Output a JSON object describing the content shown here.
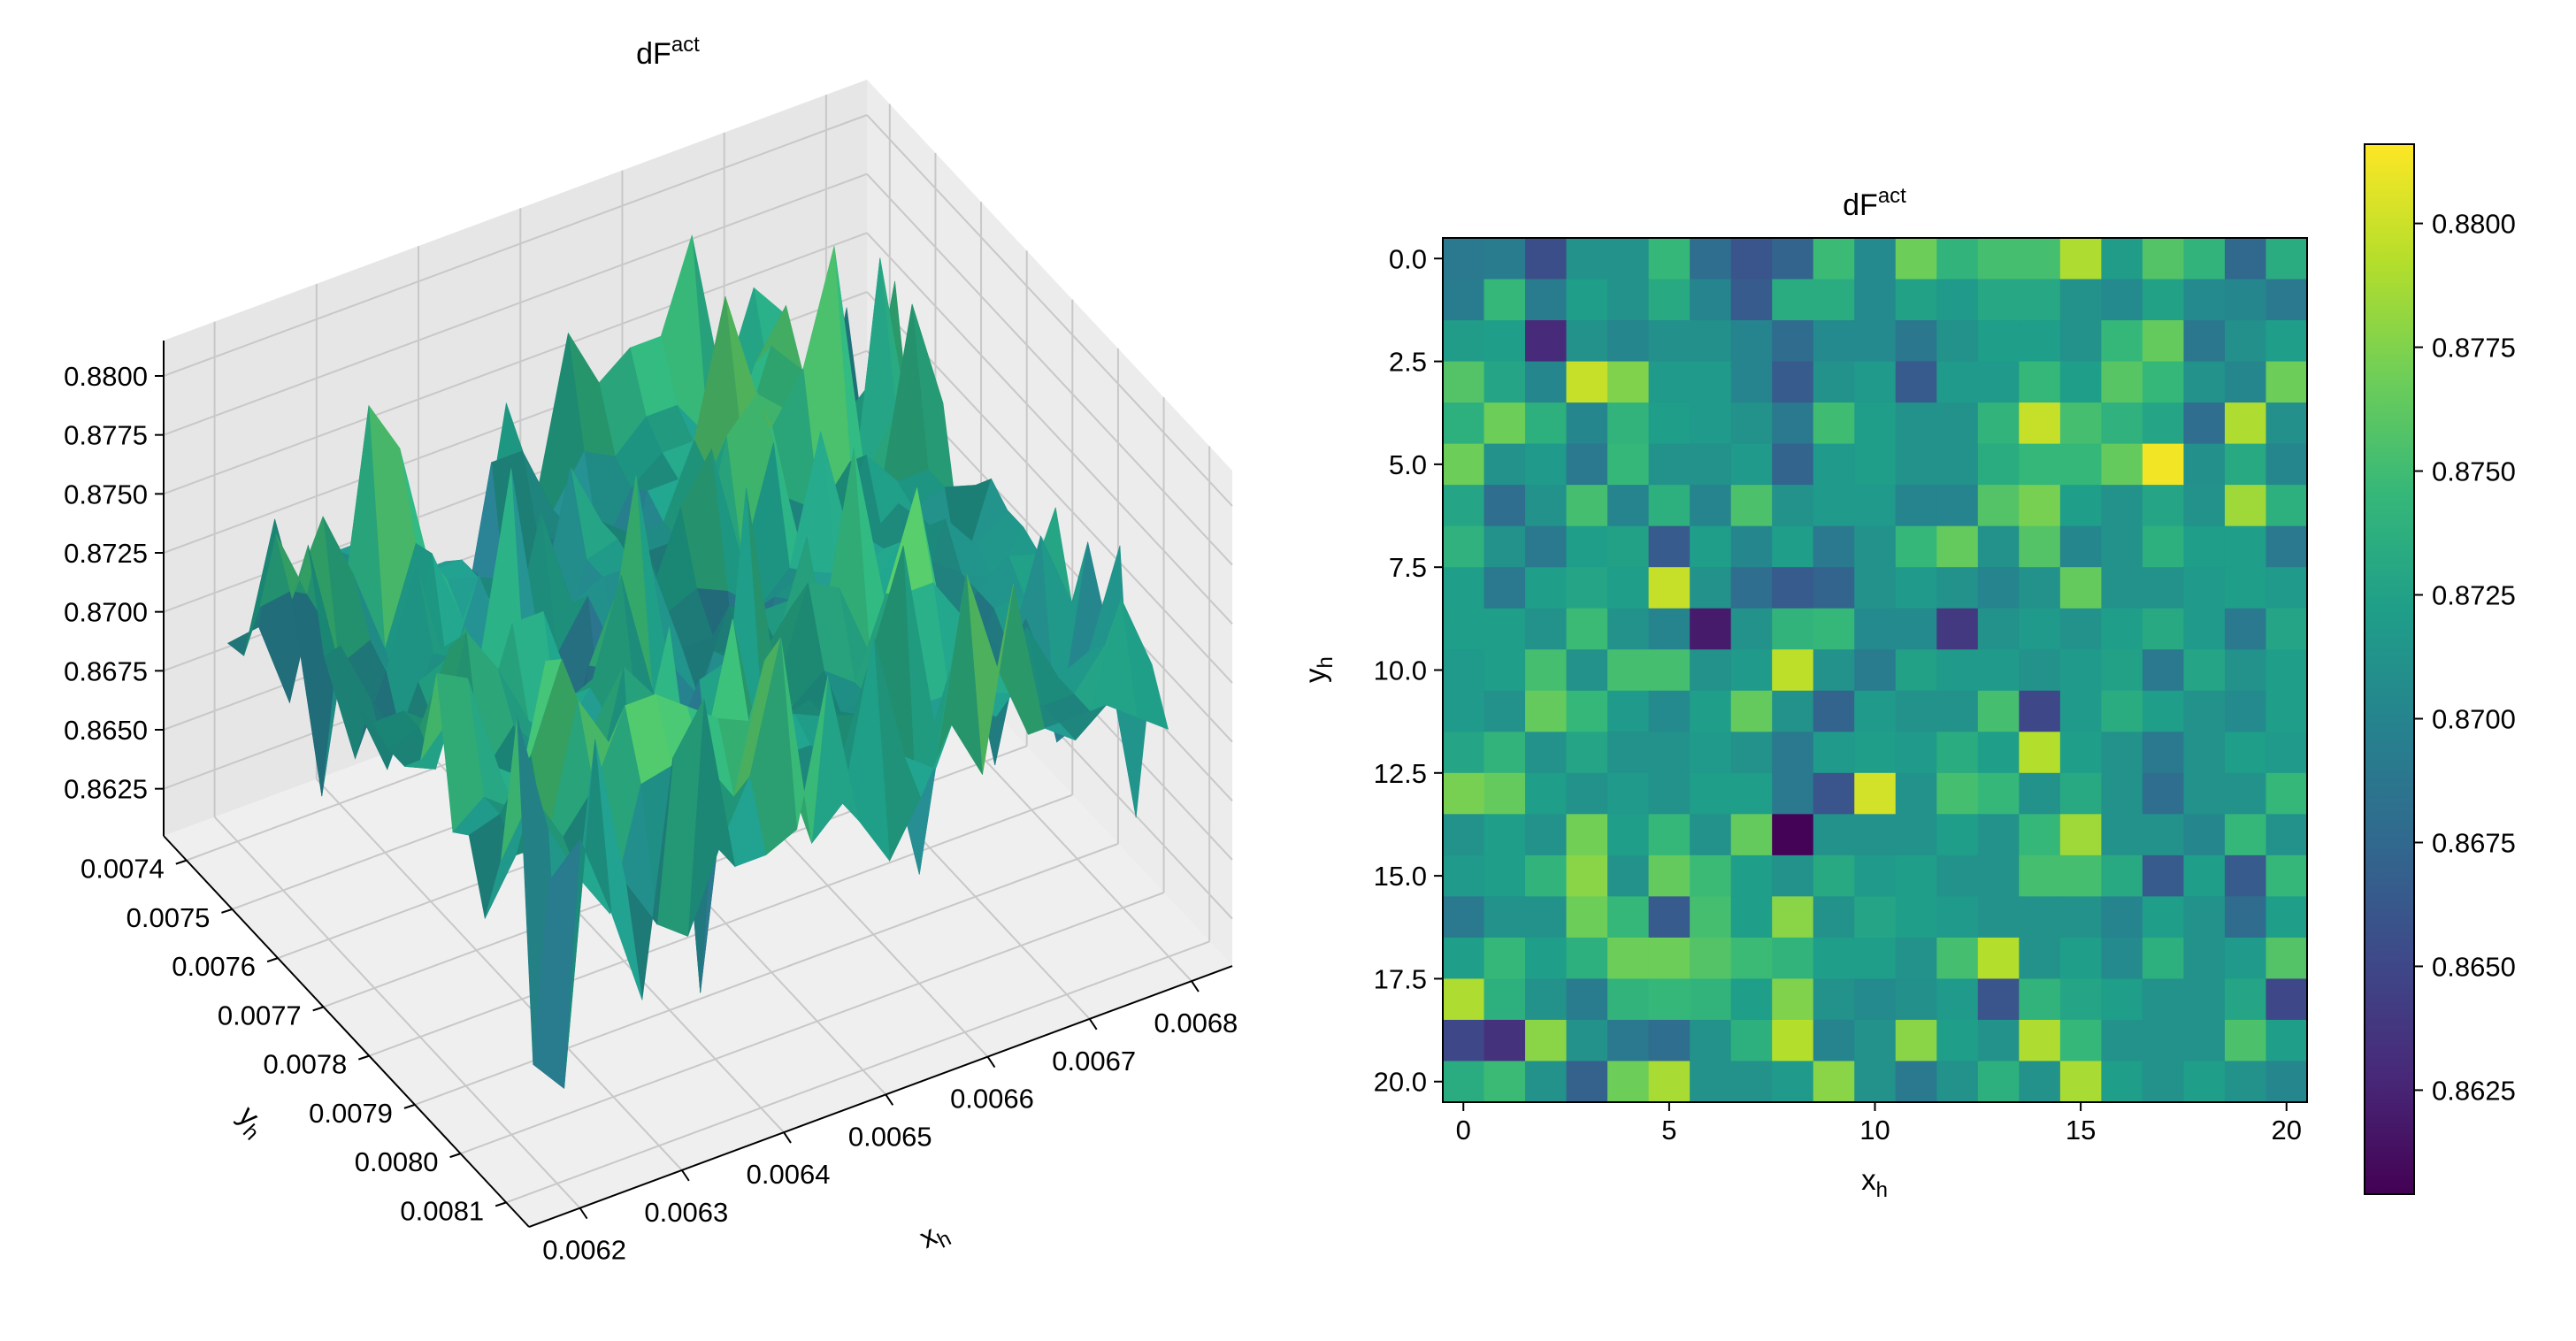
{
  "colormap": "viridis",
  "colors": {
    "viridis": [
      "#440154",
      "#482878",
      "#3e4989",
      "#31688e",
      "#26828e",
      "#1f9e89",
      "#35b779",
      "#6ece58",
      "#b5de2b",
      "#fde725"
    ],
    "pane": "#ebebeb",
    "grid": "#c8c8c8"
  },
  "chart_data": [
    {
      "type": "surface3d",
      "title": "dF",
      "title_superscript": "act",
      "xlabel": "x",
      "xlabel_subscript": "h",
      "ylabel": "y",
      "ylabel_subscript": "h",
      "x_ticks": [
        "0.0062",
        "0.0063",
        "0.0064",
        "0.0065",
        "0.0066",
        "0.0067",
        "0.0068"
      ],
      "y_ticks": [
        "0.0074",
        "0.0075",
        "0.0076",
        "0.0077",
        "0.0078",
        "0.0079",
        "0.0080",
        "0.0081"
      ],
      "z_ticks": [
        "0.8625",
        "0.8650",
        "0.8675",
        "0.8700",
        "0.8725",
        "0.8750",
        "0.8775",
        "0.8800"
      ],
      "xlim": [
        0.00615,
        0.00684
      ],
      "ylim": [
        0.00735,
        0.00815
      ],
      "zlim": [
        0.8605,
        0.8815
      ],
      "grid": true
    },
    {
      "type": "heatmap",
      "title": "dF",
      "title_superscript": "act",
      "xlabel": "x",
      "xlabel_subscript": "h",
      "ylabel": "y",
      "ylabel_subscript": "h",
      "x_ticks": [
        "0",
        "5",
        "10",
        "15",
        "20"
      ],
      "y_ticks": [
        "0.0",
        "2.5",
        "5.0",
        "7.5",
        "10.0",
        "12.5",
        "15.0",
        "17.5",
        "20.0"
      ],
      "colorbar_ticks": [
        "0.8625",
        "0.8650",
        "0.8675",
        "0.8700",
        "0.8725",
        "0.8750",
        "0.8775",
        "0.8800"
      ],
      "vmin": 0.8604,
      "vmax": 0.8816,
      "rows": 21,
      "cols": 21,
      "values": [
        [
          0.869,
          0.8692,
          0.8655,
          0.8712,
          0.8712,
          0.8745,
          0.868,
          0.866,
          0.8672,
          0.8748,
          0.8705,
          0.8768,
          0.8742,
          0.8752,
          0.8752,
          0.879,
          0.872,
          0.8758,
          0.8742,
          0.8675,
          0.8735
        ],
        [
          0.8692,
          0.8745,
          0.8692,
          0.8722,
          0.8712,
          0.8732,
          0.87,
          0.8665,
          0.8735,
          0.8735,
          0.8705,
          0.8725,
          0.8718,
          0.873,
          0.873,
          0.8712,
          0.8705,
          0.8725,
          0.8705,
          0.8702,
          0.869
        ],
        [
          0.872,
          0.8722,
          0.863,
          0.8712,
          0.8702,
          0.871,
          0.871,
          0.87,
          0.8678,
          0.8705,
          0.8705,
          0.8688,
          0.8712,
          0.8722,
          0.8722,
          0.8712,
          0.8745,
          0.8765,
          0.8688,
          0.871,
          0.8722
        ],
        [
          0.8758,
          0.8728,
          0.8702,
          0.8798,
          0.8775,
          0.8718,
          0.8718,
          0.87,
          0.8665,
          0.8712,
          0.8718,
          0.8665,
          0.8718,
          0.8718,
          0.8745,
          0.8722,
          0.876,
          0.8745,
          0.8712,
          0.8702,
          0.8768
        ],
        [
          0.8738,
          0.8768,
          0.8738,
          0.8702,
          0.8742,
          0.8722,
          0.8718,
          0.8712,
          0.869,
          0.875,
          0.8722,
          0.8712,
          0.8712,
          0.8742,
          0.8798,
          0.8752,
          0.874,
          0.8728,
          0.868,
          0.879,
          0.871
        ],
        [
          0.8768,
          0.8712,
          0.8718,
          0.869,
          0.8745,
          0.8712,
          0.8712,
          0.8718,
          0.8672,
          0.8718,
          0.8722,
          0.8712,
          0.8712,
          0.8735,
          0.8745,
          0.8745,
          0.8765,
          0.8812,
          0.871,
          0.8732,
          0.8702
        ],
        [
          0.8728,
          0.868,
          0.8712,
          0.8752,
          0.87,
          0.8738,
          0.87,
          0.8755,
          0.8712,
          0.8718,
          0.8718,
          0.87,
          0.87,
          0.8758,
          0.8772,
          0.8722,
          0.8712,
          0.8728,
          0.8712,
          0.8785,
          0.8738
        ],
        [
          0.874,
          0.8712,
          0.869,
          0.8722,
          0.8725,
          0.8665,
          0.8722,
          0.8702,
          0.8722,
          0.869,
          0.8712,
          0.8745,
          0.8765,
          0.8712,
          0.8758,
          0.8702,
          0.8712,
          0.8738,
          0.8722,
          0.8722,
          0.869
        ],
        [
          0.8722,
          0.869,
          0.8722,
          0.8728,
          0.8722,
          0.8798,
          0.8712,
          0.868,
          0.8665,
          0.8672,
          0.8712,
          0.8718,
          0.8712,
          0.87,
          0.8712,
          0.8765,
          0.8712,
          0.8712,
          0.8718,
          0.8722,
          0.8718
        ],
        [
          0.8722,
          0.8722,
          0.8712,
          0.8748,
          0.8712,
          0.87,
          0.862,
          0.8712,
          0.8742,
          0.8745,
          0.8705,
          0.8705,
          0.864,
          0.8712,
          0.8718,
          0.8712,
          0.8722,
          0.8732,
          0.8718,
          0.869,
          0.8728
        ],
        [
          0.8718,
          0.8722,
          0.8752,
          0.8712,
          0.8752,
          0.8752,
          0.8712,
          0.8718,
          0.8795,
          0.8712,
          0.8692,
          0.8725,
          0.8718,
          0.8718,
          0.8712,
          0.8718,
          0.8725,
          0.869,
          0.8728,
          0.8712,
          0.8722
        ],
        [
          0.8718,
          0.8712,
          0.8765,
          0.8745,
          0.8718,
          0.8705,
          0.8722,
          0.8765,
          0.8712,
          0.8672,
          0.8718,
          0.8712,
          0.8712,
          0.8752,
          0.865,
          0.8718,
          0.8735,
          0.8722,
          0.8712,
          0.8705,
          0.8722
        ],
        [
          0.8728,
          0.8742,
          0.8712,
          0.8728,
          0.8712,
          0.8712,
          0.8718,
          0.8712,
          0.869,
          0.8718,
          0.8722,
          0.8718,
          0.8735,
          0.8722,
          0.8792,
          0.8722,
          0.8712,
          0.869,
          0.8712,
          0.8722,
          0.8718
        ],
        [
          0.8772,
          0.8765,
          0.8722,
          0.8712,
          0.8718,
          0.8712,
          0.8722,
          0.8722,
          0.869,
          0.866,
          0.8802,
          0.8712,
          0.8752,
          0.8745,
          0.8712,
          0.8732,
          0.8712,
          0.868,
          0.8712,
          0.8712,
          0.8745
        ],
        [
          0.8712,
          0.8722,
          0.8712,
          0.877,
          0.8722,
          0.8745,
          0.8712,
          0.8765,
          0.8605,
          0.8712,
          0.8712,
          0.8712,
          0.8722,
          0.8712,
          0.8745,
          0.8785,
          0.8712,
          0.8712,
          0.8702,
          0.8745,
          0.8712
        ],
        [
          0.8718,
          0.8722,
          0.8742,
          0.8778,
          0.8712,
          0.8765,
          0.8748,
          0.8722,
          0.8712,
          0.8732,
          0.8718,
          0.8722,
          0.8712,
          0.8712,
          0.8752,
          0.8752,
          0.8732,
          0.8665,
          0.8722,
          0.8665,
          0.8745
        ],
        [
          0.869,
          0.8712,
          0.8712,
          0.8768,
          0.8745,
          0.8665,
          0.8752,
          0.8722,
          0.8778,
          0.8712,
          0.8728,
          0.8722,
          0.8718,
          0.8712,
          0.8712,
          0.8712,
          0.87,
          0.8722,
          0.8712,
          0.8678,
          0.8722
        ],
        [
          0.8722,
          0.8745,
          0.8722,
          0.8738,
          0.8768,
          0.8768,
          0.8758,
          0.8748,
          0.8742,
          0.8722,
          0.8722,
          0.8712,
          0.8752,
          0.8792,
          0.8712,
          0.8722,
          0.8705,
          0.8738,
          0.8712,
          0.8718,
          0.8758
        ],
        [
          0.879,
          0.8738,
          0.8712,
          0.8692,
          0.8742,
          0.8745,
          0.8742,
          0.8722,
          0.8775,
          0.8712,
          0.8705,
          0.871,
          0.8718,
          0.866,
          0.8742,
          0.8728,
          0.8722,
          0.8712,
          0.8712,
          0.8728,
          0.865
        ],
        [
          0.865,
          0.8635,
          0.8778,
          0.8712,
          0.869,
          0.868,
          0.8712,
          0.8738,
          0.8792,
          0.87,
          0.8712,
          0.8778,
          0.8722,
          0.8712,
          0.879,
          0.8745,
          0.8712,
          0.8712,
          0.8712,
          0.8755,
          0.8722
        ],
        [
          0.8735,
          0.8748,
          0.8712,
          0.867,
          0.8768,
          0.8788,
          0.8712,
          0.8712,
          0.8718,
          0.8778,
          0.8712,
          0.869,
          0.8712,
          0.8738,
          0.8712,
          0.8788,
          0.8722,
          0.8712,
          0.8722,
          0.8712,
          0.8702
        ]
      ]
    }
  ]
}
